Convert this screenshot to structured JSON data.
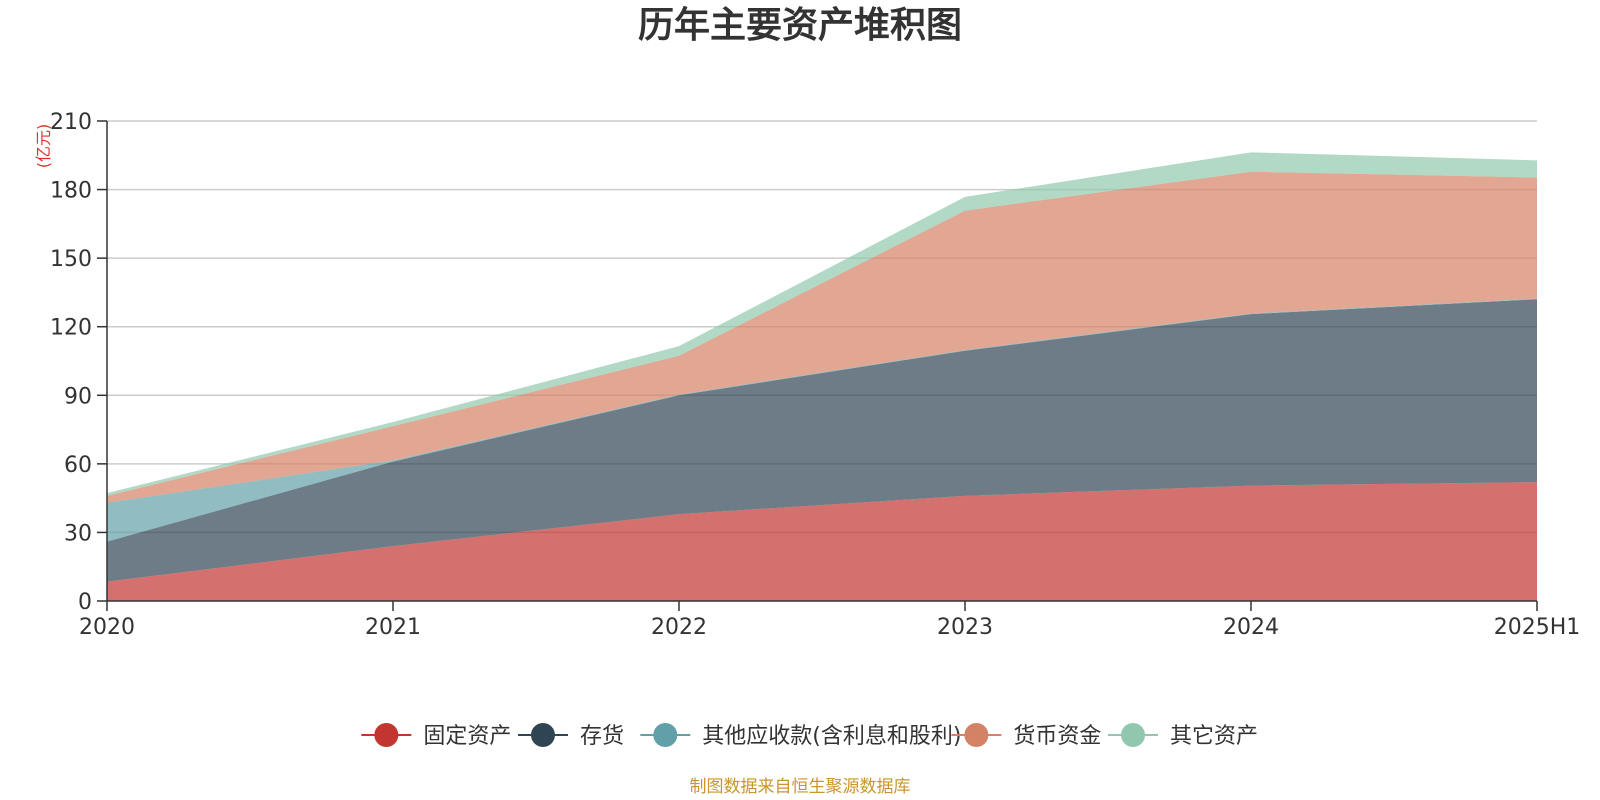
{
  "chart_data": {
    "type": "area",
    "stacked": true,
    "title": "历年主要资产堆积图",
    "unit_label": "(亿元)",
    "source_note": "制图数据来自恒生聚源数据库",
    "categories": [
      "2020",
      "2021",
      "2022",
      "2023",
      "2024",
      "2025H1"
    ],
    "ylim": [
      0,
      210
    ],
    "yticks": [
      0,
      30,
      60,
      90,
      120,
      150,
      180,
      210
    ],
    "grid": true,
    "legend_position": "bottom",
    "series": [
      {
        "name": "固定资产",
        "color": "#c23531",
        "values": [
          8.5,
          24,
          38,
          46,
          50.5,
          52
        ]
      },
      {
        "name": "存货",
        "color": "#2f4554",
        "values": [
          17.5,
          37,
          52,
          63.5,
          75,
          80
        ]
      },
      {
        "name": "其他应收款(含利息和股利)",
        "color": "#61a0a8",
        "values": [
          17,
          0.5,
          0.3,
          0.3,
          0.3,
          0.3
        ]
      },
      {
        "name": "货币资金",
        "color": "#d48265",
        "values": [
          3,
          15,
          17,
          61,
          62,
          53
        ]
      },
      {
        "name": "其它资产",
        "color": "#91c7ae",
        "values": [
          1.2,
          1.8,
          4.2,
          6,
          8.5,
          7.5
        ]
      }
    ]
  }
}
